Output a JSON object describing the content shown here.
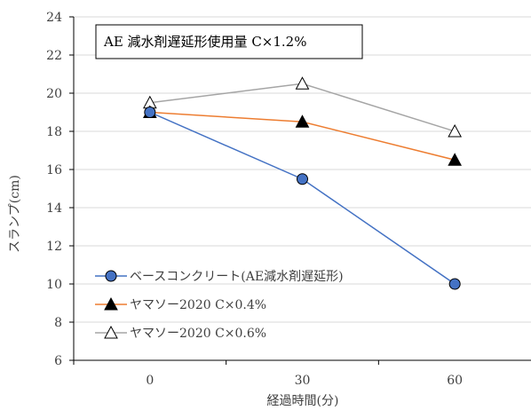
{
  "chart_data": {
    "type": "line",
    "title": "",
    "xlabel": "経過時間(分)",
    "ylabel": "スランプ(cm)",
    "x": [
      0,
      30,
      60
    ],
    "x_tick_labels": [
      "0",
      "30",
      "60"
    ],
    "ylim": [
      6,
      24
    ],
    "y_ticks": [
      6,
      8,
      10,
      12,
      14,
      16,
      18,
      20,
      22,
      24
    ],
    "y_tick_labels": [
      "6",
      "8",
      "10",
      "12",
      "14",
      "16",
      "18",
      "20",
      "22",
      "24"
    ],
    "grid": "horizontal",
    "legend_position": "bottom-left",
    "annotation": "AE 減水剤遅延形使用量 C×1.2%",
    "series": [
      {
        "name": "ベースコンクリート(AE減水剤遅延形)",
        "values": [
          19.0,
          15.5,
          10.0
        ],
        "color": "#4472c4",
        "marker": "circle-filled",
        "marker_fill": "#4472c4"
      },
      {
        "name": "ヤマソー2020 C×0.4%",
        "values": [
          19.0,
          18.5,
          16.5
        ],
        "color": "#ed7d31",
        "marker": "triangle-filled",
        "marker_fill": "#000000"
      },
      {
        "name": "ヤマソー2020 C×0.6%",
        "values": [
          19.5,
          20.5,
          18.0
        ],
        "color": "#a5a5a5",
        "marker": "triangle-open",
        "marker_fill": "#ffffff"
      }
    ]
  }
}
